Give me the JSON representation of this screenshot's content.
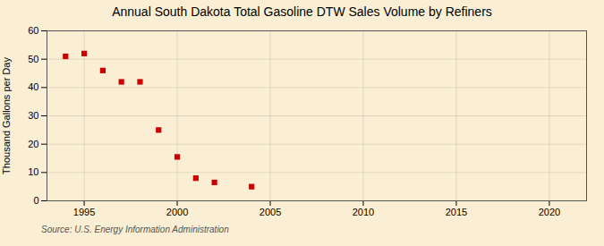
{
  "chart_data": {
    "type": "scatter",
    "title": "Annual South Dakota Total Gasoline DTW Sales Volume by Refiners",
    "ylabel": "Thousand Gallons per Day",
    "source": "Source: U.S. Energy Information Administration",
    "x": [
      1994,
      1995,
      1996,
      1997,
      1998,
      1999,
      2000,
      2001,
      2002,
      2004
    ],
    "values": [
      51.0,
      52.0,
      46.0,
      42.0,
      42.0,
      25.0,
      15.5,
      8.0,
      6.5,
      5.0
    ],
    "color": "#cc0000",
    "marker": "square",
    "xlim": [
      1993,
      2022
    ],
    "xticks": [
      1995,
      2000,
      2005,
      2010,
      2015,
      2020
    ],
    "ylim": [
      0,
      60
    ],
    "yticks": [
      0,
      10,
      20,
      30,
      40,
      50,
      60
    ],
    "grid": true
  }
}
